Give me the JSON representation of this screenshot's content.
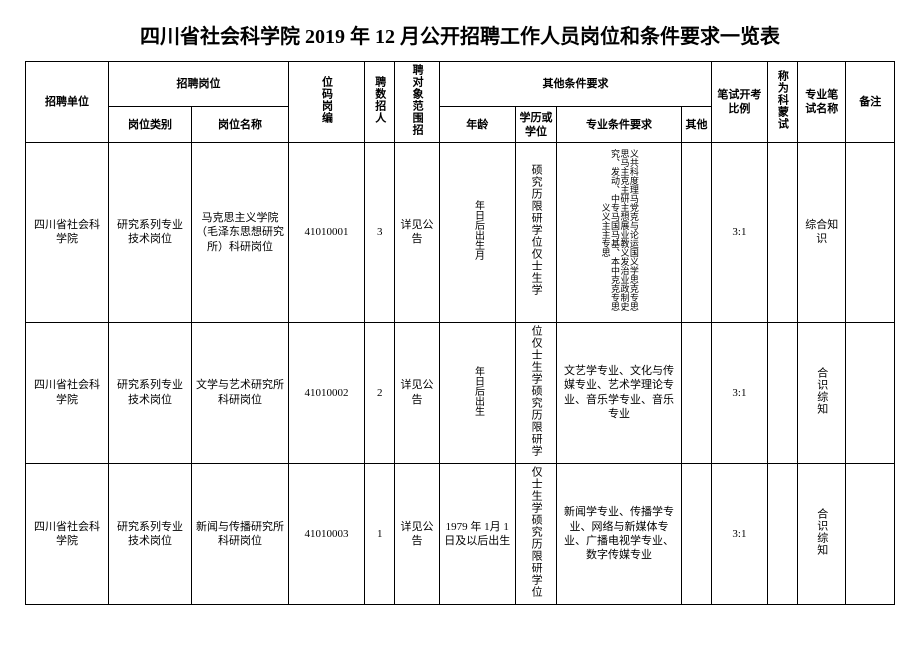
{
  "title": "四川省社会科学院 2019 年 12 月公开招聘工作人员岗位和条件要求一览表",
  "headers": {
    "unit": "招聘单位",
    "position_group": "招聘岗位",
    "position_cat": "岗位类别",
    "position_name": "岗位名称",
    "code": "位码岗编",
    "count": "聘数招人",
    "range": "聘对象范围招",
    "other_req_group": "其他条件要求",
    "age": "年龄",
    "edu": "学历或学位",
    "major": "专业条件要求",
    "other": "其他",
    "ratio": "笔试开考比例",
    "subject": "称为科蒙试",
    "examname": "专业笔试名称",
    "remark": "备注"
  },
  "rows": [
    {
      "unit": "四川省社会科学院",
      "cat": "研究系列专业技术岗位",
      "posname": "马克思主义学院（毛泽东思想研究所）科研岗位",
      "code": "41010001",
      "count": "3",
      "range": "详见公告",
      "age": "年日后出生月",
      "edu": "硕究历限研学位仅士生学",
      "major": "义共科度理马党克与论运国义学思克专思思马主克主研主想展业教义发治业政制史究、发动、中专马国马基、本中克克专思义义主主专思",
      "other": "",
      "ratio": "3:1",
      "subject": "",
      "exam": "综合知识",
      "remark": ""
    },
    {
      "unit": "四川省社会科学院",
      "cat": "研究系列专业技术岗位",
      "posname": "文学与艺术研究所科研岗位",
      "code": "41010002",
      "count": "2",
      "range": "详见公告",
      "age": "年日后出生",
      "edu": "位仅士生学硕究历限研学",
      "major": "文艺学专业、文化与传媒专业、艺术学理论专业、音乐学专业、音乐专业",
      "other": "",
      "ratio": "3:1",
      "subject": "",
      "exam": "合识综知",
      "remark": ""
    },
    {
      "unit": "四川省社会科学院",
      "cat": "研究系列专业技术岗位",
      "posname": "新闻与传播研究所科研岗位",
      "code": "41010003",
      "count": "1",
      "range": "详见公告",
      "age": "1979 年 1月 1 日及以后出生",
      "edu": "仅士生学硕究历限研学位",
      "major": "新闻学专业、传播学专业、网络与新媒体专业、广播电视学专业、数字传媒专业",
      "other": "",
      "ratio": "3:1",
      "subject": "",
      "exam": "合识综知",
      "remark": ""
    }
  ]
}
